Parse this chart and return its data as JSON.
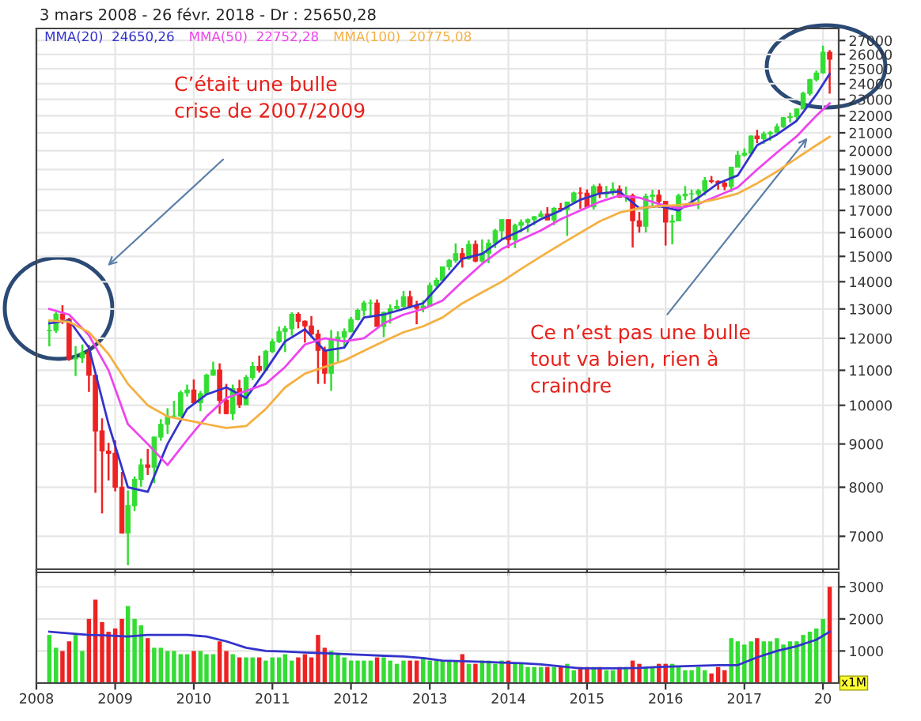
{
  "chart_data": [
    {
      "type": "candlestick",
      "title": "3 mars 2008 - 26 févr. 2018 - Dr : 25650,28",
      "log": "y",
      "grid": true,
      "legend": "top left",
      "tick_labels": "y",
      "annotations": [
        "C’était une bulle\ncrise de 2007/2009",
        "Ce n’est pas une bulle\ntout va bien, rien à\ncraindre"
      ],
      "xlim": [
        "2008-01-01",
        "2018-03-15"
      ],
      "ylim": [
        6400,
        27900
      ],
      "xticks": [
        {
          "value": "2008-01-01",
          "label": null
        },
        {
          "value": "2009-01-01",
          "label": null
        },
        {
          "value": "2010-01-01",
          "label": null
        },
        {
          "value": "2011-01-01",
          "label": null
        },
        {
          "value": "2012-01-01",
          "label": null
        },
        {
          "value": "2013-01-01",
          "label": null
        },
        {
          "value": "2014-01-01",
          "label": null
        },
        {
          "value": "2015-01-01",
          "label": null
        },
        {
          "value": "2016-01-01",
          "label": null
        },
        {
          "value": "2017-01-01",
          "label": null
        },
        {
          "value": "2018-01-01",
          "label": null
        }
      ],
      "yticks": [
        7000,
        8000,
        9000,
        10000,
        11000,
        12000,
        13000,
        14000,
        15000,
        16000,
        17000,
        18000,
        19000,
        20000,
        21000,
        22000,
        23000,
        24000,
        25000,
        26000,
        27000
      ],
      "series": [
        {
          "x": [
            "2008-03",
            "2008-04",
            "2008-05",
            "2008-06",
            "2008-07",
            "2008-08",
            "2008-09",
            "2008-10",
            "2008-11",
            "2008-12",
            "2009-01",
            "2009-02",
            "2009-03",
            "2009-04",
            "2009-05",
            "2009-06",
            "2009-07",
            "2009-08",
            "2009-09",
            "2009-10",
            "2009-11",
            "2009-12",
            "2010-01",
            "2010-02",
            "2010-03",
            "2010-04",
            "2010-05",
            "2010-06",
            "2010-07",
            "2010-08",
            "2010-09",
            "2010-10",
            "2010-11",
            "2010-12",
            "2011-01",
            "2011-02",
            "2011-03",
            "2011-04",
            "2011-05",
            "2011-06",
            "2011-07",
            "2011-08",
            "2011-09",
            "2011-10",
            "2011-11",
            "2011-12",
            "2012-01",
            "2012-02",
            "2012-03",
            "2012-04",
            "2012-05",
            "2012-06",
            "2012-07",
            "2012-08",
            "2012-09",
            "2012-10",
            "2012-11",
            "2012-12",
            "2013-01",
            "2013-02",
            "2013-03",
            "2013-04",
            "2013-05",
            "2013-06",
            "2013-07",
            "2013-08",
            "2013-09",
            "2013-10",
            "2013-11",
            "2013-12",
            "2014-01",
            "2014-02",
            "2014-03",
            "2014-04",
            "2014-05",
            "2014-06",
            "2014-07",
            "2014-08",
            "2014-09",
            "2014-10",
            "2014-11",
            "2014-12",
            "2015-01",
            "2015-02",
            "2015-03",
            "2015-04",
            "2015-05",
            "2015-06",
            "2015-07",
            "2015-08",
            "2015-09",
            "2015-10",
            "2015-11",
            "2015-12",
            "2016-01",
            "2016-02",
            "2016-03",
            "2016-04",
            "2016-05",
            "2016-06",
            "2016-07",
            "2016-08",
            "2016-09",
            "2016-10",
            "2016-11",
            "2016-12",
            "2017-01",
            "2017-02",
            "2017-03",
            "2017-04",
            "2017-05",
            "2017-06",
            "2017-07",
            "2017-08",
            "2017-09",
            "2017-10",
            "2017-11",
            "2017-12",
            "2018-01",
            "2018-02"
          ],
          "ohlc": [
            [
              12250,
              12600,
              11740,
              12262
            ],
            [
              12262,
              12890,
              12180,
              12820
            ],
            [
              12820,
              13130,
              12480,
              12638
            ],
            [
              12638,
              12690,
              11290,
              11350
            ],
            [
              11350,
              11750,
              10830,
              11378
            ],
            [
              11378,
              11800,
              11220,
              11544
            ],
            [
              11544,
              11790,
              10370,
              10851
            ],
            [
              10851,
              10880,
              7880,
              9325
            ],
            [
              9325,
              9650,
              7450,
              8829
            ],
            [
              8829,
              9030,
              8150,
              8776
            ],
            [
              8776,
              9090,
              7910,
              8001
            ],
            [
              8001,
              8340,
              7060,
              7063
            ],
            [
              7063,
              7930,
              6470,
              7609
            ],
            [
              7609,
              8240,
              7500,
              8168
            ],
            [
              8168,
              8650,
              8010,
              8500
            ],
            [
              8500,
              8880,
              8270,
              8447
            ],
            [
              8447,
              9180,
              8090,
              9172
            ],
            [
              9172,
              9630,
              9080,
              9496
            ],
            [
              9496,
              9920,
              9250,
              9712
            ],
            [
              9712,
              10120,
              9670,
              9713
            ],
            [
              9713,
              10410,
              9680,
              10345
            ],
            [
              10345,
              10580,
              10240,
              10428
            ],
            [
              10428,
              10730,
              10030,
              10067
            ],
            [
              10067,
              10400,
              9840,
              10325
            ],
            [
              10325,
              10900,
              10300,
              10857
            ],
            [
              10857,
              11260,
              10830,
              11009
            ],
            [
              11009,
              11210,
              9770,
              10137
            ],
            [
              10137,
              10600,
              9760,
              9774
            ],
            [
              9774,
              10580,
              9610,
              10466
            ],
            [
              10466,
              10720,
              9930,
              10015
            ],
            [
              10015,
              10860,
              10010,
              10788
            ],
            [
              10788,
              11250,
              10710,
              11118
            ],
            [
              11118,
              11450,
              10930,
              11006
            ],
            [
              11006,
              11630,
              11000,
              11578
            ],
            [
              11578,
              11990,
              11530,
              11892
            ],
            [
              11892,
              12390,
              11850,
              12226
            ],
            [
              12226,
              12420,
              11560,
              12320
            ],
            [
              12320,
              12880,
              12090,
              12811
            ],
            [
              12811,
              12880,
              12330,
              12570
            ],
            [
              12570,
              12600,
              11860,
              12414
            ],
            [
              12414,
              12750,
              12080,
              12143
            ],
            [
              12143,
              12280,
              10600,
              11614
            ],
            [
              11614,
              11730,
              10600,
              10913
            ],
            [
              10913,
              12280,
              10400,
              11955
            ],
            [
              11955,
              12230,
              11230,
              12046
            ],
            [
              12046,
              12330,
              11730,
              12218
            ],
            [
              12218,
              12720,
              12200,
              12633
            ],
            [
              12633,
              13010,
              12600,
              12952
            ],
            [
              12952,
              13290,
              12750,
              13212
            ],
            [
              13212,
              13340,
              12710,
              13214
            ],
            [
              13214,
              13340,
              12390,
              12393
            ],
            [
              12393,
              12900,
              12040,
              12880
            ],
            [
              12880,
              13160,
              12490,
              13009
            ],
            [
              13009,
              13330,
              12980,
              13091
            ],
            [
              13091,
              13650,
              13040,
              13437
            ],
            [
              13437,
              13660,
              13040,
              13096
            ],
            [
              13096,
              13290,
              12470,
              13026
            ],
            [
              13026,
              13310,
              12880,
              13104
            ],
            [
              13104,
              13970,
              13100,
              13861
            ],
            [
              13861,
              14150,
              13780,
              14054
            ],
            [
              14054,
              14590,
              14050,
              14579
            ],
            [
              14579,
              14890,
              14440,
              14840
            ],
            [
              14840,
              15540,
              14740,
              15116
            ],
            [
              15116,
              15340,
              14550,
              14910
            ],
            [
              14910,
              15660,
              14860,
              15500
            ],
            [
              15500,
              15660,
              14760,
              14810
            ],
            [
              14810,
              15710,
              14760,
              15130
            ],
            [
              15130,
              15710,
              14720,
              15546
            ],
            [
              15546,
              16170,
              15340,
              16086
            ],
            [
              16086,
              16590,
              15700,
              16577
            ],
            [
              16577,
              16590,
              15340,
              15699
            ],
            [
              15699,
              16400,
              15340,
              16322
            ],
            [
              16322,
              16590,
              16010,
              16458
            ],
            [
              16458,
              16630,
              16020,
              16581
            ],
            [
              16581,
              16740,
              16330,
              16717
            ],
            [
              16717,
              16980,
              16680,
              16827
            ],
            [
              16827,
              17150,
              16560,
              16563
            ],
            [
              16563,
              17150,
              16330,
              17098
            ],
            [
              17098,
              17350,
              16950,
              17043
            ],
            [
              17043,
              17400,
              15860,
              17391
            ],
            [
              17391,
              17890,
              17300,
              17828
            ],
            [
              17828,
              18100,
              17070,
              17823
            ],
            [
              17823,
              18000,
              17140,
              17165
            ],
            [
              17165,
              18240,
              17040,
              18133
            ],
            [
              18133,
              18290,
              17580,
              17776
            ],
            [
              17776,
              18170,
              17600,
              17841
            ],
            [
              17841,
              18350,
              17700,
              18011
            ],
            [
              18011,
              18200,
              17590,
              17620
            ],
            [
              17620,
              18140,
              17400,
              17690
            ],
            [
              17690,
              17800,
              15370,
              16528
            ],
            [
              16528,
              16930,
              16000,
              16285
            ],
            [
              16285,
              17800,
              16010,
              17664
            ],
            [
              17664,
              17980,
              17210,
              17720
            ],
            [
              17720,
              17980,
              17130,
              17425
            ],
            [
              17425,
              17430,
              15450,
              16466
            ],
            [
              16466,
              16800,
              15500,
              16517
            ],
            [
              16517,
              17790,
              16500,
              17685
            ],
            [
              17685,
              18170,
              17480,
              17774
            ],
            [
              17774,
              17990,
              17330,
              17787
            ],
            [
              17787,
              18020,
              17060,
              17930
            ],
            [
              17930,
              18620,
              17710,
              18432
            ],
            [
              18432,
              18670,
              18300,
              18401
            ],
            [
              18401,
              18450,
              17990,
              18308
            ],
            [
              18308,
              18400,
              17960,
              18142
            ],
            [
              18142,
              19150,
              17880,
              19124
            ],
            [
              19124,
              19990,
              19120,
              19763
            ],
            [
              19763,
              20130,
              19680,
              19864
            ],
            [
              19864,
              20850,
              19830,
              20812
            ],
            [
              20812,
              21170,
              20410,
              20663
            ],
            [
              20663,
              21070,
              20380,
              20941
            ],
            [
              20941,
              21110,
              20550,
              21009
            ],
            [
              21009,
              21530,
              20990,
              21350
            ],
            [
              21350,
              21930,
              21280,
              21891
            ],
            [
              21891,
              22180,
              21600,
              21948
            ],
            [
              21948,
              22420,
              21710,
              22405
            ],
            [
              22405,
              23490,
              22400,
              23377
            ],
            [
              23377,
              24330,
              23240,
              24272
            ],
            [
              24272,
              24880,
              24140,
              24719
            ],
            [
              24719,
              26620,
              24660,
              26149
            ],
            [
              26149,
              26310,
              23360,
              25650
            ]
          ],
          "colors": [
            "#33dd33",
            "#33dd33",
            "#ee2222",
            "#ee2222",
            "#33dd33",
            "#33dd33",
            "#ee2222",
            "#ee2222",
            "#ee2222",
            "#ee2222",
            "#ee2222",
            "#ee2222",
            "#33dd33",
            "#33dd33",
            "#33dd33",
            "#ee2222",
            "#33dd33",
            "#33dd33",
            "#33dd33",
            "#33dd33",
            "#33dd33",
            "#33dd33",
            "#ee2222",
            "#33dd33",
            "#33dd33",
            "#33dd33",
            "#ee2222",
            "#ee2222",
            "#33dd33",
            "#ee2222",
            "#33dd33",
            "#33dd33",
            "#ee2222",
            "#33dd33",
            "#33dd33",
            "#33dd33",
            "#33dd33",
            "#33dd33",
            "#ee2222",
            "#ee2222",
            "#ee2222",
            "#ee2222",
            "#ee2222",
            "#33dd33",
            "#33dd33",
            "#33dd33",
            "#33dd33",
            "#33dd33",
            "#33dd33",
            "#33dd33",
            "#ee2222",
            "#33dd33",
            "#33dd33",
            "#33dd33",
            "#33dd33",
            "#ee2222",
            "#ee2222",
            "#33dd33",
            "#33dd33",
            "#33dd33",
            "#33dd33",
            "#33dd33",
            "#33dd33",
            "#ee2222",
            "#33dd33",
            "#ee2222",
            "#33dd33",
            "#33dd33",
            "#33dd33",
            "#33dd33",
            "#ee2222",
            "#33dd33",
            "#33dd33",
            "#33dd33",
            "#33dd33",
            "#33dd33",
            "#ee2222",
            "#33dd33",
            "#ee2222",
            "#33dd33",
            "#33dd33",
            "#ee2222",
            "#ee2222",
            "#33dd33",
            "#ee2222",
            "#33dd33",
            "#33dd33",
            "#ee2222",
            "#33dd33",
            "#ee2222",
            "#ee2222",
            "#33dd33",
            "#33dd33",
            "#ee2222",
            "#ee2222",
            "#33dd33",
            "#33dd33",
            "#33dd33",
            "#33dd33",
            "#33dd33",
            "#33dd33",
            "#ee2222",
            "#ee2222",
            "#ee2222",
            "#33dd33",
            "#33dd33",
            "#33dd33",
            "#33dd33",
            "#ee2222",
            "#33dd33",
            "#33dd33",
            "#33dd33",
            "#33dd33",
            "#33dd33",
            "#33dd33",
            "#33dd33",
            "#33dd33",
            "#33dd33",
            "#33dd33",
            "#ee2222"
          ]
        },
        {
          "type": "line",
          "name": "MMA(20)  24650,26",
          "color": "#3333cc",
          "x": [
            "2008-03",
            "2008-06",
            "2008-09",
            "2008-12",
            "2009-03",
            "2009-06",
            "2009-09",
            "2009-12",
            "2010-03",
            "2010-06",
            "2010-09",
            "2010-12",
            "2011-03",
            "2011-06",
            "2011-09",
            "2011-12",
            "2012-03",
            "2012-06",
            "2012-09",
            "2012-12",
            "2013-03",
            "2013-06",
            "2013-09",
            "2013-12",
            "2014-03",
            "2014-06",
            "2014-09",
            "2014-12",
            "2015-03",
            "2015-06",
            "2015-09",
            "2015-12",
            "2016-03",
            "2016-06",
            "2016-09",
            "2016-12",
            "2017-03",
            "2017-06",
            "2017-09",
            "2017-12",
            "2018-02"
          ],
          "values": [
            12500,
            12600,
            11700,
            9500,
            8000,
            7900,
            9000,
            9900,
            10300,
            10500,
            10200,
            11000,
            11900,
            12300,
            11600,
            11700,
            12700,
            12800,
            13000,
            13200,
            14000,
            14900,
            15100,
            15700,
            16100,
            16600,
            17000,
            17500,
            17800,
            17900,
            17100,
            17200,
            17000,
            17600,
            18300,
            18700,
            20300,
            20900,
            21700,
            23300,
            24650
          ]
        },
        {
          "type": "line",
          "name": "MMA(50)  22752,28",
          "color": "#ee44ee",
          "x": [
            "2008-03",
            "2008-06",
            "2008-09",
            "2008-12",
            "2009-03",
            "2009-06",
            "2009-09",
            "2009-12",
            "2010-03",
            "2010-06",
            "2010-09",
            "2010-12",
            "2011-03",
            "2011-06",
            "2011-09",
            "2011-12",
            "2012-03",
            "2012-06",
            "2012-09",
            "2012-12",
            "2013-03",
            "2013-06",
            "2013-09",
            "2013-12",
            "2014-03",
            "2014-06",
            "2014-09",
            "2014-12",
            "2015-03",
            "2015-06",
            "2015-09",
            "2015-12",
            "2016-03",
            "2016-06",
            "2016-09",
            "2016-12",
            "2017-03",
            "2017-06",
            "2017-09",
            "2017-12",
            "2018-02"
          ],
          "values": [
            13000,
            12800,
            12100,
            11000,
            9500,
            9000,
            8500,
            9100,
            9700,
            10200,
            10400,
            10600,
            11100,
            11800,
            12000,
            11900,
            12000,
            12500,
            12800,
            13000,
            13300,
            14000,
            14700,
            15300,
            15700,
            16100,
            16600,
            17000,
            17400,
            17700,
            17600,
            17300,
            17100,
            17300,
            17700,
            18100,
            19000,
            19900,
            20800,
            22000,
            22752
          ]
        },
        {
          "type": "line",
          "name": "MMA(100)  20775,08",
          "color": "#f5b041",
          "x": [
            "2008-03",
            "2008-06",
            "2008-09",
            "2008-12",
            "2009-03",
            "2009-06",
            "2009-09",
            "2009-12",
            "2010-03",
            "2010-06",
            "2010-09",
            "2010-12",
            "2011-03",
            "2011-06",
            "2011-09",
            "2011-12",
            "2012-03",
            "2012-06",
            "2012-09",
            "2012-12",
            "2013-03",
            "2013-06",
            "2013-09",
            "2013-12",
            "2014-03",
            "2014-06",
            "2014-09",
            "2014-12",
            "2015-03",
            "2015-06",
            "2015-09",
            "2015-12",
            "2016-03",
            "2016-06",
            "2016-09",
            "2016-12",
            "2017-03",
            "2017-06",
            "2017-09",
            "2017-12",
            "2018-02"
          ],
          "values": [
            12600,
            12550,
            12200,
            11500,
            10600,
            10000,
            9700,
            9600,
            9500,
            9400,
            9450,
            9900,
            10500,
            10900,
            11100,
            11300,
            11600,
            11900,
            12200,
            12400,
            12700,
            13200,
            13600,
            14000,
            14500,
            15000,
            15500,
            16000,
            16500,
            16900,
            17100,
            17200,
            17250,
            17350,
            17550,
            17800,
            18300,
            18900,
            19600,
            20300,
            20775
          ]
        }
      ]
    },
    {
      "type": "bar",
      "grid": true,
      "annotations": [
        "x1M"
      ],
      "xlim": [
        "2008-01-01",
        "2018-03-15"
      ],
      "ylim": [
        0,
        3450
      ],
      "xticks": [
        {
          "value": "2008-01-01",
          "label": "2008"
        },
        {
          "value": "2009-01-01",
          "label": "2009"
        },
        {
          "value": "2010-01-01",
          "label": "2010"
        },
        {
          "value": "2011-01-01",
          "label": "2011"
        },
        {
          "value": "2012-01-01",
          "label": "2012"
        },
        {
          "value": "2013-01-01",
          "label": "2013"
        },
        {
          "value": "2014-01-01",
          "label": "2014"
        },
        {
          "value": "2015-01-01",
          "label": "2015"
        },
        {
          "value": "2016-01-01",
          "label": "2016"
        },
        {
          "value": "2017-01-01",
          "label": "2017"
        },
        {
          "value": "2018-01-01",
          "label": "20"
        }
      ],
      "yticks": [
        1000,
        2000,
        3000
      ],
      "series": [
        {
          "x": [
            "2008-03",
            "2008-04",
            "2008-05",
            "2008-06",
            "2008-07",
            "2008-08",
            "2008-09",
            "2008-10",
            "2008-11",
            "2008-12",
            "2009-01",
            "2009-02",
            "2009-03",
            "2009-04",
            "2009-05",
            "2009-06",
            "2009-07",
            "2009-08",
            "2009-09",
            "2009-10",
            "2009-11",
            "2009-12",
            "2010-01",
            "2010-02",
            "2010-03",
            "2010-04",
            "2010-05",
            "2010-06",
            "2010-07",
            "2010-08",
            "2010-09",
            "2010-10",
            "2010-11",
            "2010-12",
            "2011-01",
            "2011-02",
            "2011-03",
            "2011-04",
            "2011-05",
            "2011-06",
            "2011-07",
            "2011-08",
            "2011-09",
            "2011-10",
            "2011-11",
            "2011-12",
            "2012-01",
            "2012-02",
            "2012-03",
            "2012-04",
            "2012-05",
            "2012-06",
            "2012-07",
            "2012-08",
            "2012-09",
            "2012-10",
            "2012-11",
            "2012-12",
            "2013-01",
            "2013-02",
            "2013-03",
            "2013-04",
            "2013-05",
            "2013-06",
            "2013-07",
            "2013-08",
            "2013-09",
            "2013-10",
            "2013-11",
            "2013-12",
            "2014-01",
            "2014-02",
            "2014-03",
            "2014-04",
            "2014-05",
            "2014-06",
            "2014-07",
            "2014-08",
            "2014-09",
            "2014-10",
            "2014-11",
            "2014-12",
            "2015-01",
            "2015-02",
            "2015-03",
            "2015-04",
            "2015-05",
            "2015-06",
            "2015-07",
            "2015-08",
            "2015-09",
            "2015-10",
            "2015-11",
            "2015-12",
            "2016-01",
            "2016-02",
            "2016-03",
            "2016-04",
            "2016-05",
            "2016-06",
            "2016-07",
            "2016-08",
            "2016-09",
            "2016-10",
            "2016-11",
            "2016-12",
            "2017-01",
            "2017-02",
            "2017-03",
            "2017-04",
            "2017-05",
            "2017-06",
            "2017-07",
            "2017-08",
            "2017-09",
            "2017-10",
            "2017-11",
            "2017-12",
            "2018-01",
            "2018-02"
          ],
          "values": [
            1500,
            1100,
            1000,
            1300,
            1500,
            1000,
            2000,
            2600,
            1900,
            1600,
            1700,
            2000,
            2400,
            2000,
            1800,
            1400,
            1100,
            1100,
            1000,
            1000,
            900,
            900,
            1000,
            1000,
            900,
            900,
            1300,
            1000,
            900,
            800,
            800,
            800,
            800,
            700,
            800,
            800,
            900,
            700,
            800,
            900,
            800,
            1500,
            1100,
            1000,
            900,
            800,
            700,
            700,
            700,
            700,
            800,
            800,
            700,
            600,
            700,
            700,
            700,
            800,
            700,
            700,
            700,
            700,
            700,
            900,
            600,
            600,
            700,
            700,
            600,
            700,
            700,
            600,
            600,
            500,
            500,
            500,
            500,
            500,
            500,
            600,
            400,
            500,
            500,
            500,
            500,
            400,
            400,
            500,
            500,
            700,
            600,
            500,
            500,
            600,
            600,
            600,
            500,
            400,
            400,
            500,
            400,
            300,
            500,
            400,
            1400,
            1300,
            1200,
            1300,
            1400,
            1300,
            1300,
            1400,
            1200,
            1300,
            1300,
            1500,
            1600,
            1700,
            2000,
            3000
          ],
          "colors": [
            "#33dd33",
            "#33dd33",
            "#ee2222",
            "#ee2222",
            "#33dd33",
            "#33dd33",
            "#ee2222",
            "#ee2222",
            "#ee2222",
            "#ee2222",
            "#ee2222",
            "#ee2222",
            "#33dd33",
            "#33dd33",
            "#33dd33",
            "#ee2222",
            "#33dd33",
            "#33dd33",
            "#33dd33",
            "#33dd33",
            "#33dd33",
            "#33dd33",
            "#ee2222",
            "#33dd33",
            "#33dd33",
            "#33dd33",
            "#ee2222",
            "#ee2222",
            "#33dd33",
            "#ee2222",
            "#33dd33",
            "#33dd33",
            "#ee2222",
            "#33dd33",
            "#33dd33",
            "#33dd33",
            "#33dd33",
            "#33dd33",
            "#ee2222",
            "#ee2222",
            "#ee2222",
            "#ee2222",
            "#ee2222",
            "#33dd33",
            "#33dd33",
            "#33dd33",
            "#33dd33",
            "#33dd33",
            "#33dd33",
            "#33dd33",
            "#ee2222",
            "#33dd33",
            "#33dd33",
            "#33dd33",
            "#33dd33",
            "#ee2222",
            "#ee2222",
            "#33dd33",
            "#33dd33",
            "#33dd33",
            "#33dd33",
            "#33dd33",
            "#33dd33",
            "#ee2222",
            "#33dd33",
            "#ee2222",
            "#33dd33",
            "#33dd33",
            "#33dd33",
            "#33dd33",
            "#ee2222",
            "#33dd33",
            "#33dd33",
            "#33dd33",
            "#33dd33",
            "#33dd33",
            "#ee2222",
            "#33dd33",
            "#ee2222",
            "#33dd33",
            "#33dd33",
            "#ee2222",
            "#ee2222",
            "#33dd33",
            "#ee2222",
            "#33dd33",
            "#33dd33",
            "#ee2222",
            "#33dd33",
            "#ee2222",
            "#ee2222",
            "#33dd33",
            "#33dd33",
            "#ee2222",
            "#ee2222",
            "#33dd33",
            "#33dd33",
            "#33dd33",
            "#33dd33",
            "#33dd33",
            "#33dd33",
            "#ee2222",
            "#ee2222",
            "#ee2222",
            "#33dd33",
            "#33dd33",
            "#33dd33",
            "#33dd33",
            "#ee2222",
            "#33dd33",
            "#33dd33",
            "#33dd33",
            "#33dd33",
            "#33dd33",
            "#33dd33",
            "#33dd33",
            "#33dd33",
            "#33dd33",
            "#33dd33",
            "#ee2222"
          ]
        },
        {
          "type": "line",
          "color": "#3333cc",
          "x": [
            "2008-03",
            "2008-06",
            "2008-09",
            "2008-12",
            "2009-03",
            "2009-06",
            "2009-09",
            "2009-12",
            "2010-03",
            "2010-06",
            "2010-09",
            "2010-12",
            "2011-03",
            "2011-06",
            "2011-09",
            "2011-12",
            "2012-03",
            "2012-06",
            "2012-09",
            "2012-12",
            "2013-03",
            "2013-06",
            "2013-09",
            "2013-12",
            "2014-03",
            "2014-06",
            "2014-09",
            "2014-12",
            "2015-03",
            "2015-06",
            "2015-09",
            "2015-12",
            "2016-03",
            "2016-06",
            "2016-09",
            "2016-12",
            "2017-03",
            "2017-06",
            "2017-09",
            "2017-12",
            "2018-02"
          ],
          "values": [
            1600,
            1550,
            1500,
            1480,
            1450,
            1500,
            1500,
            1500,
            1450,
            1300,
            1100,
            1000,
            980,
            950,
            930,
            900,
            880,
            850,
            830,
            780,
            700,
            680,
            660,
            640,
            620,
            580,
            520,
            460,
            460,
            460,
            470,
            500,
            520,
            540,
            560,
            560,
            800,
            1000,
            1150,
            1350,
            1600
          ]
        }
      ]
    }
  ]
}
